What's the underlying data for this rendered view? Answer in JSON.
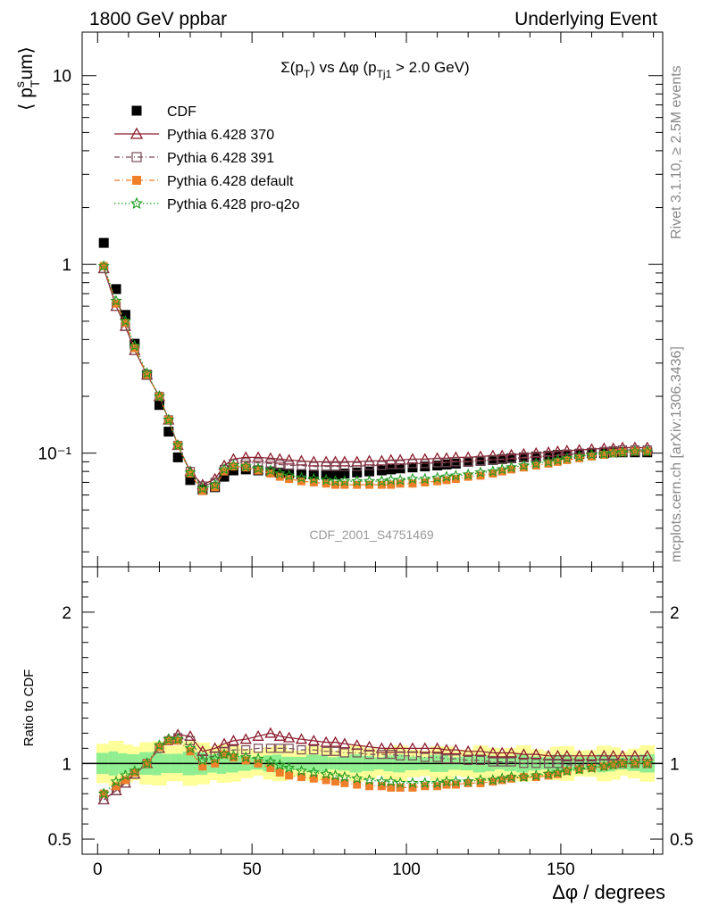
{
  "header": {
    "left": "1800 GeV ppbar",
    "right": "Underlying Event"
  },
  "side_labels": {
    "rivet": "Rivet 3.1.10, ≥ 2.5M events",
    "mcplots": "mcplots.cern.ch [arXiv:1306.3436]"
  },
  "watermark": "CDF_2001_S4751469",
  "chart_data": [
    {
      "type": "line",
      "panel": "main",
      "title": "Σ(pT) vs Δφ (pTj1 > 2.0 GeV)",
      "ylabel": "⟨ pTsum ⟩",
      "ylog": true,
      "ylim": [
        0.025,
        17
      ],
      "xlim": [
        -5,
        183
      ],
      "yticks": [
        {
          "v": 0.1,
          "label": "10⁻¹"
        },
        {
          "v": 1,
          "label": "1"
        },
        {
          "v": 10,
          "label": "10"
        }
      ],
      "legend": [
        {
          "name": "CDF",
          "color": "#000000",
          "marker": "square-filled",
          "line": "none"
        },
        {
          "name": "Pythia 6.428 370",
          "color": "#8b1a2b",
          "marker": "triangle-open",
          "line": "solid"
        },
        {
          "name": "Pythia 6.428 391",
          "color": "#7a4a55",
          "marker": "square-open",
          "line": "dashdot"
        },
        {
          "name": "Pythia 6.428 default",
          "color": "#f07f2a",
          "marker": "square-filled",
          "line": "dashdot"
        },
        {
          "name": "Pythia 6.428 pro-q2o",
          "color": "#1f9a1f",
          "marker": "star",
          "line": "dotted"
        }
      ],
      "x": [
        2,
        6,
        9,
        12,
        16,
        20,
        23,
        26,
        30,
        34,
        38,
        41,
        44,
        48,
        52,
        56,
        59,
        62,
        66,
        70,
        74,
        77,
        80,
        84,
        88,
        92,
        95,
        98,
        102,
        106,
        110,
        113,
        116,
        120,
        124,
        128,
        131,
        134,
        138,
        142,
        146,
        149,
        152,
        156,
        160,
        164,
        167,
        170,
        174,
        178
      ],
      "series": [
        {
          "name": "CDF",
          "values": [
            1.3,
            0.74,
            0.54,
            0.38,
            0.26,
            0.18,
            0.13,
            0.095,
            0.072,
            0.064,
            0.066,
            0.075,
            0.081,
            0.082,
            0.081,
            0.08,
            0.079,
            0.078,
            0.077,
            0.077,
            0.077,
            0.077,
            0.078,
            0.079,
            0.08,
            0.081,
            0.082,
            0.083,
            0.084,
            0.085,
            0.086,
            0.087,
            0.088,
            0.09,
            0.091,
            0.092,
            0.093,
            0.094,
            0.095,
            0.096,
            0.097,
            0.098,
            0.098,
            0.099,
            0.1,
            0.1,
            0.101,
            0.101,
            0.101,
            0.101
          ]
        },
        {
          "name": "Pythia 6.428 370",
          "values": [
            0.95,
            0.6,
            0.47,
            0.35,
            0.26,
            0.2,
            0.15,
            0.11,
            0.08,
            0.068,
            0.073,
            0.086,
            0.093,
            0.095,
            0.095,
            0.094,
            0.093,
            0.092,
            0.091,
            0.09,
            0.09,
            0.09,
            0.09,
            0.09,
            0.091,
            0.091,
            0.092,
            0.092,
            0.093,
            0.093,
            0.094,
            0.094,
            0.095,
            0.095,
            0.096,
            0.097,
            0.097,
            0.098,
            0.099,
            0.1,
            0.101,
            0.102,
            0.103,
            0.104,
            0.105,
            0.106,
            0.106,
            0.107,
            0.107,
            0.107
          ]
        },
        {
          "name": "Pythia 6.428 391",
          "values": [
            0.95,
            0.6,
            0.47,
            0.35,
            0.26,
            0.2,
            0.15,
            0.11,
            0.08,
            0.067,
            0.07,
            0.082,
            0.088,
            0.089,
            0.089,
            0.088,
            0.087,
            0.086,
            0.086,
            0.085,
            0.085,
            0.085,
            0.085,
            0.085,
            0.086,
            0.086,
            0.087,
            0.087,
            0.088,
            0.088,
            0.089,
            0.089,
            0.09,
            0.09,
            0.091,
            0.092,
            0.093,
            0.094,
            0.095,
            0.096,
            0.097,
            0.098,
            0.099,
            0.1,
            0.101,
            0.102,
            0.103,
            0.104,
            0.104,
            0.104
          ]
        },
        {
          "name": "Pythia 6.428 default",
          "values": [
            0.98,
            0.62,
            0.49,
            0.36,
            0.26,
            0.2,
            0.15,
            0.11,
            0.078,
            0.063,
            0.066,
            0.08,
            0.085,
            0.084,
            0.081,
            0.078,
            0.075,
            0.073,
            0.071,
            0.07,
            0.069,
            0.068,
            0.068,
            0.068,
            0.068,
            0.068,
            0.068,
            0.069,
            0.069,
            0.07,
            0.071,
            0.072,
            0.073,
            0.075,
            0.076,
            0.078,
            0.08,
            0.082,
            0.084,
            0.086,
            0.088,
            0.09,
            0.092,
            0.094,
            0.096,
            0.098,
            0.1,
            0.101,
            0.102,
            0.102
          ]
        },
        {
          "name": "Pythia 6.428 pro-q2o",
          "values": [
            0.98,
            0.64,
            0.5,
            0.37,
            0.265,
            0.2,
            0.15,
            0.11,
            0.079,
            0.065,
            0.068,
            0.082,
            0.086,
            0.085,
            0.083,
            0.081,
            0.078,
            0.076,
            0.074,
            0.073,
            0.072,
            0.071,
            0.071,
            0.071,
            0.071,
            0.071,
            0.072,
            0.072,
            0.073,
            0.073,
            0.074,
            0.075,
            0.076,
            0.077,
            0.079,
            0.08,
            0.082,
            0.084,
            0.086,
            0.088,
            0.09,
            0.092,
            0.094,
            0.096,
            0.098,
            0.099,
            0.1,
            0.101,
            0.102,
            0.102
          ]
        }
      ]
    },
    {
      "type": "line",
      "panel": "ratio",
      "ylabel": "Ratio to CDF",
      "xlabel": "Δφ / degrees",
      "ylim": [
        0.4,
        2.3
      ],
      "xlim": [
        -5,
        183
      ],
      "xticks": [
        0,
        50,
        100,
        150
      ],
      "yticks": [
        {
          "v": 0.5,
          "label": "0.5"
        },
        {
          "v": 1,
          "label": "1"
        },
        {
          "v": 2,
          "label": "2"
        }
      ],
      "band_inner_halfwidth": 0.05,
      "band_outer_halfwidth": 0.1,
      "band_colors": {
        "inner": "#90ee90",
        "outer": "#ffff9a"
      },
      "x": [
        2,
        6,
        9,
        12,
        16,
        20,
        23,
        26,
        30,
        34,
        38,
        41,
        44,
        48,
        52,
        56,
        59,
        62,
        66,
        70,
        74,
        77,
        80,
        84,
        88,
        92,
        95,
        98,
        102,
        106,
        110,
        113,
        116,
        120,
        124,
        128,
        131,
        134,
        138,
        142,
        146,
        149,
        152,
        156,
        160,
        164,
        167,
        170,
        174,
        178
      ],
      "series": [
        {
          "name": "Pythia 6.428 370",
          "values": [
            0.76,
            0.82,
            0.87,
            0.93,
            1.0,
            1.1,
            1.16,
            1.19,
            1.18,
            1.08,
            1.1,
            1.13,
            1.15,
            1.16,
            1.18,
            1.2,
            1.18,
            1.17,
            1.16,
            1.15,
            1.14,
            1.14,
            1.13,
            1.12,
            1.11,
            1.1,
            1.1,
            1.1,
            1.1,
            1.1,
            1.1,
            1.09,
            1.09,
            1.08,
            1.08,
            1.07,
            1.07,
            1.07,
            1.06,
            1.06,
            1.05,
            1.05,
            1.05,
            1.05,
            1.05,
            1.05,
            1.05,
            1.05,
            1.05,
            1.05
          ]
        },
        {
          "name": "Pythia 6.428 391",
          "values": [
            0.76,
            0.82,
            0.87,
            0.93,
            1.0,
            1.1,
            1.15,
            1.17,
            1.15,
            1.03,
            1.05,
            1.08,
            1.09,
            1.09,
            1.1,
            1.1,
            1.1,
            1.1,
            1.09,
            1.09,
            1.08,
            1.08,
            1.07,
            1.07,
            1.06,
            1.06,
            1.06,
            1.05,
            1.05,
            1.04,
            1.04,
            1.03,
            1.03,
            1.02,
            1.02,
            1.01,
            1.01,
            1.01,
            1.0,
            1.0,
            1.0,
            1.0,
            0.99,
            0.99,
            0.99,
            1.0,
            1.0,
            1.0,
            1.0,
            1.0
          ]
        },
        {
          "name": "Pythia 6.428 default",
          "values": [
            0.8,
            0.85,
            0.89,
            0.94,
            1.0,
            1.11,
            1.15,
            1.15,
            1.08,
            0.98,
            1.0,
            1.06,
            1.04,
            1.02,
            1.0,
            0.97,
            0.94,
            0.92,
            0.91,
            0.9,
            0.89,
            0.88,
            0.87,
            0.86,
            0.85,
            0.85,
            0.84,
            0.84,
            0.84,
            0.85,
            0.85,
            0.86,
            0.86,
            0.87,
            0.87,
            0.88,
            0.89,
            0.9,
            0.91,
            0.91,
            0.92,
            0.93,
            0.95,
            0.96,
            0.97,
            0.98,
            0.99,
            1.0,
            1.0,
            1.0
          ]
        },
        {
          "name": "Pythia 6.428 pro-q2o",
          "values": [
            0.8,
            0.88,
            0.92,
            0.95,
            1.0,
            1.12,
            1.16,
            1.16,
            1.1,
            1.02,
            1.03,
            1.06,
            1.05,
            1.04,
            1.03,
            1.01,
            0.99,
            0.97,
            0.95,
            0.94,
            0.93,
            0.92,
            0.91,
            0.9,
            0.89,
            0.88,
            0.88,
            0.87,
            0.87,
            0.87,
            0.87,
            0.88,
            0.88,
            0.88,
            0.89,
            0.89,
            0.9,
            0.91,
            0.91,
            0.92,
            0.93,
            0.94,
            0.95,
            0.96,
            0.97,
            0.98,
            0.99,
            1.0,
            1.0,
            1.0
          ]
        }
      ]
    }
  ]
}
